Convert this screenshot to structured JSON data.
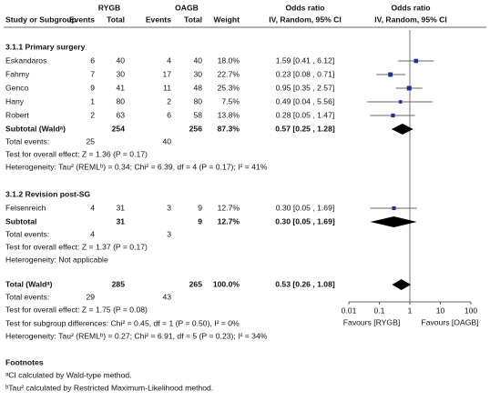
{
  "header": {
    "group1": "RYGB",
    "group2": "OAGB",
    "effect_title": "Odds ratio",
    "effect_method": "IV, Random, 95% CI",
    "plot_title": "Odds ratio",
    "plot_method": "IV, Random, 95% CI",
    "study": "Study or Subgroup",
    "events1": "Events",
    "total1": "Total",
    "events2": "Events",
    "total2": "Total",
    "weight": "Weight"
  },
  "sections": [
    {
      "title": "3.1.1 Primary surgery",
      "studies": [
        {
          "name": "Eskandaros",
          "events1": 6,
          "total1": 40,
          "events2": 4,
          "total2": 40,
          "weight": 18.0,
          "weight_label": "18.0%",
          "or": 1.59,
          "lo": 0.41,
          "hi": 6.12,
          "ci_label": "1.59 [0.41 , 6.12]"
        },
        {
          "name": "Fahmy",
          "events1": 7,
          "total1": 30,
          "events2": 17,
          "total2": 30,
          "weight": 22.7,
          "weight_label": "22.7%",
          "or": 0.23,
          "lo": 0.08,
          "hi": 0.71,
          "ci_label": "0.23 [0.08 , 0.71]"
        },
        {
          "name": "Genco",
          "events1": 9,
          "total1": 41,
          "events2": 11,
          "total2": 48,
          "weight": 25.3,
          "weight_label": "25.3%",
          "or": 0.95,
          "lo": 0.35,
          "hi": 2.57,
          "ci_label": "0.95 [0.35 , 2.57]"
        },
        {
          "name": "Hany",
          "events1": 1,
          "total1": 80,
          "events2": 2,
          "total2": 80,
          "weight": 7.5,
          "weight_label": "7.5%",
          "or": 0.49,
          "lo": 0.04,
          "hi": 5.56,
          "ci_label": "0.49 [0.04 , 5.56]"
        },
        {
          "name": "Robert",
          "events1": 2,
          "total1": 63,
          "events2": 6,
          "total2": 58,
          "weight": 13.8,
          "weight_label": "13.8%",
          "or": 0.28,
          "lo": 0.05,
          "hi": 1.47,
          "ci_label": "0.28 [0.05 , 1.47]"
        }
      ],
      "subtotal": {
        "label": "Subtotal (Waldᵃ)",
        "total1": 254,
        "total2": 256,
        "weight": 87.3,
        "weight_label": "87.3%",
        "or": 0.57,
        "lo": 0.25,
        "hi": 1.28,
        "ci_label": "0.57 [0.25 , 1.28]"
      },
      "total_events": {
        "label": "Total events:",
        "events1": 25,
        "events2": 40
      },
      "overall_effect": "Test for overall effect: Z = 1.36 (P = 0.17)",
      "heterogeneity": "Heterogeneity: Tau² (REMLᵇ) = 0.34; Chi² = 6.39, df = 4 (P = 0.17); I² = 41%"
    },
    {
      "title": "3.1.2 Revision post-SG",
      "studies": [
        {
          "name": "Felsenreich",
          "events1": 4,
          "total1": 31,
          "events2": 3,
          "total2": 9,
          "weight": 12.7,
          "weight_label": "12.7%",
          "or": 0.3,
          "lo": 0.05,
          "hi": 1.69,
          "ci_label": "0.30 [0.05 , 1.69]"
        }
      ],
      "subtotal": {
        "label": "Subtotal",
        "total1": 31,
        "total2": 9,
        "weight": 12.7,
        "weight_label": "12.7%",
        "or": 0.3,
        "lo": 0.05,
        "hi": 1.69,
        "ci_label": "0.30 [0.05 , 1.69]"
      },
      "total_events": {
        "label": "Total events:",
        "events1": 4,
        "events2": 3
      },
      "overall_effect": "Test for overall effect: Z = 1.37 (P = 0.17)",
      "heterogeneity": "Heterogeneity: Not applicable"
    }
  ],
  "total": {
    "label": "Total (Waldᵃ)",
    "total1": 285,
    "total2": 265,
    "weight": 100.0,
    "weight_label": "100.0%",
    "or": 0.53,
    "lo": 0.26,
    "hi": 1.08,
    "ci_label": "0.53 [0.26 , 1.08]"
  },
  "total_events": {
    "label": "Total events:",
    "events1": 29,
    "events2": 43
  },
  "overall_effect": "Test for overall effect: Z = 1.75 (P = 0.08)",
  "subgroup_differences": "Test for subgroup differences: Chi² = 0.45, df = 1 (P = 0.50), I² = 0%",
  "heterogeneity": "Heterogeneity: Tau² (REMLᵇ) = 0.27; Chi² = 6.91, df = 5 (P = 0.23); I² = 34%",
  "axis": {
    "scale": "log",
    "xlim": [
      0.01,
      100
    ],
    "xticks": [
      0.01,
      0.1,
      1,
      10,
      100
    ],
    "left_label": "Favours [RYGB]",
    "right_label": "Favours [OAGB]"
  },
  "footnotes": {
    "title": "Footnotes",
    "items": [
      "ᵃCI calculated by Wald-type method.",
      "ᵇTau² calculated by Restricted Maximum-Likelihood method."
    ]
  }
}
